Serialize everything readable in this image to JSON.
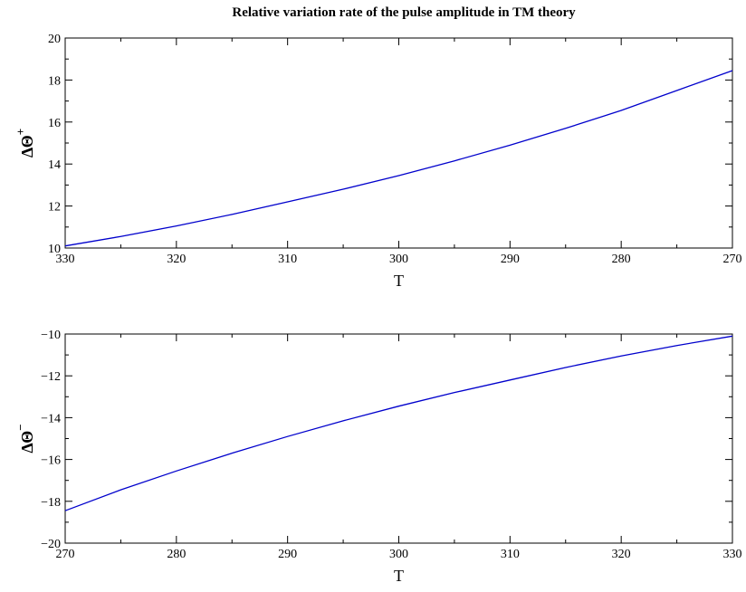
{
  "title": "Relative variation rate of the pulse amplitude in TM theory",
  "chart_data": [
    {
      "type": "line",
      "xlabel": "T",
      "ylabel": {
        "base": "ΔΘ",
        "sup": "+"
      },
      "xlim": [
        330,
        270
      ],
      "x_reversed": true,
      "ylim": [
        10,
        20
      ],
      "xticks": [
        330,
        320,
        310,
        300,
        290,
        280,
        270
      ],
      "yticks": [
        10,
        12,
        14,
        16,
        18,
        20
      ],
      "grid": false,
      "line_color": "#0000cc",
      "series": [
        {
          "x": [
            330,
            325,
            320,
            315,
            310,
            305,
            300,
            295,
            290,
            285,
            280,
            275,
            270
          ],
          "values": [
            10.1,
            10.55,
            11.05,
            11.6,
            12.2,
            12.8,
            13.45,
            14.15,
            14.9,
            15.7,
            16.55,
            17.5,
            18.45
          ]
        }
      ]
    },
    {
      "type": "line",
      "xlabel": "T",
      "ylabel": {
        "base": "ΔΘ",
        "sup": "−"
      },
      "xlim": [
        270,
        330
      ],
      "x_reversed": false,
      "ylim": [
        -20,
        -10
      ],
      "xticks": [
        270,
        280,
        290,
        300,
        310,
        320,
        330
      ],
      "yticks": [
        -20,
        -18,
        -16,
        -14,
        -12,
        -10
      ],
      "grid": false,
      "line_color": "#0000cc",
      "series": [
        {
          "x": [
            270,
            275,
            280,
            285,
            290,
            295,
            300,
            305,
            310,
            315,
            320,
            325,
            330
          ],
          "values": [
            -18.45,
            -17.45,
            -16.55,
            -15.7,
            -14.9,
            -14.15,
            -13.45,
            -12.8,
            -12.2,
            -11.6,
            -11.05,
            -10.55,
            -10.1
          ]
        }
      ]
    }
  ]
}
